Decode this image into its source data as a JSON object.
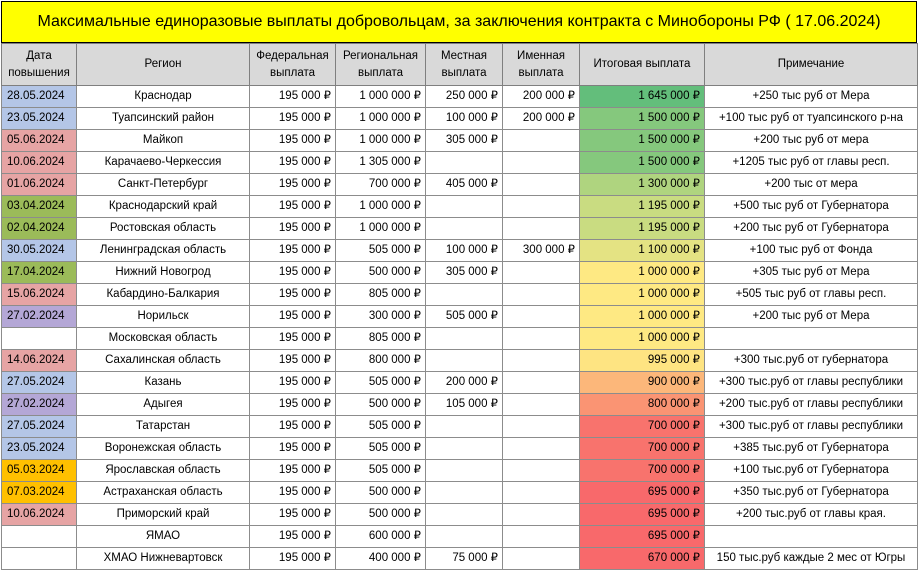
{
  "title": "Максимальные единоразовые выплаты добровольцам, за заключения контракта с Минобороны РФ ( 17.06.2024)",
  "columns": [
    "Дата повышения",
    "Регион",
    "Федеральная выплата",
    "Региональная выплата",
    "Местная выплата",
    "Именная выплата",
    "Итоговая выплата",
    "Примечание"
  ],
  "colors": {
    "date_blue": "#b4c6e7",
    "date_pink": "#e6a4a4",
    "date_green": "#9bbb59",
    "date_purple": "#b4a7d6",
    "date_orange": "#ffc000",
    "header_gray": "#d9d9d9",
    "title_yellow": "#ffff00"
  },
  "rows": [
    {
      "date": "28.05.2024",
      "date_color": "#b4c6e7",
      "region": "Краснодар",
      "federal": "195 000 ₽",
      "regional": "1 000 000 ₽",
      "local": "250 000 ₽",
      "named": "200 000 ₽",
      "total": "1 645 000 ₽",
      "total_color": "#63be7b",
      "note": "+250 тыс руб от Мера"
    },
    {
      "date": "23.05.2024",
      "date_color": "#b4c6e7",
      "region": "Туапсинский район",
      "federal": "195 000 ₽",
      "regional": "1 000 000 ₽",
      "local": "100 000 ₽",
      "named": "200 000 ₽",
      "total": "1 500 000 ₽",
      "total_color": "#85c87d",
      "note": "+100 тыс руб от туапсинского р-на"
    },
    {
      "date": "05.06.2024",
      "date_color": "#e6a4a4",
      "region": "Майкоп",
      "federal": "195 000 ₽",
      "regional": "1 000 000 ₽",
      "local": "305 000 ₽",
      "named": "",
      "total": "1 500 000 ₽",
      "total_color": "#85c87d",
      "note": "+200 тыс руб от мера"
    },
    {
      "date": "10.06.2024",
      "date_color": "#e6a4a4",
      "region": "Карачаево-Черкессия",
      "federal": "195 000 ₽",
      "regional": "1 305 000 ₽",
      "local": "",
      "named": "",
      "total": "1 500 000 ₽",
      "total_color": "#85c87d",
      "note": "+1205 тыс руб от главы респ."
    },
    {
      "date": "01.06.2024",
      "date_color": "#e6a4a4",
      "region": "Санкт-Петербург",
      "federal": "195 000 ₽",
      "regional": "700 000 ₽",
      "local": "405 000 ₽",
      "named": "",
      "total": "1 300 000 ₽",
      "total_color": "#afd47f",
      "note": "+200 тыс от мера"
    },
    {
      "date": "03.04.2024",
      "date_color": "#9bbb59",
      "region": "Краснодарский край",
      "federal": "195 000 ₽",
      "regional": "1 000 000 ₽",
      "local": "",
      "named": "",
      "total": "1 195 000 ₽",
      "total_color": "#c9dc81",
      "note": "+500 тыс руб от Губернатора"
    },
    {
      "date": "02.04.2024",
      "date_color": "#9bbb59",
      "region": "Ростовская область",
      "federal": "195 000 ₽",
      "regional": "1 000 000 ₽",
      "local": "",
      "named": "",
      "total": "1 195 000 ₽",
      "total_color": "#c9dc81",
      "note": "+200 тыс руб от Губернатора"
    },
    {
      "date": "30.05.2024",
      "date_color": "#b4c6e7",
      "region": "Ленинградская область",
      "federal": "195 000 ₽",
      "regional": "505 000 ₽",
      "local": "100 000 ₽",
      "named": "300 000 ₽",
      "total": "1 100 000 ₽",
      "total_color": "#e4e383",
      "note": "+100 тыс руб от Фонда"
    },
    {
      "date": "17.04.2024",
      "date_color": "#9bbb59",
      "region": "Нижний Новогрод",
      "federal": "195 000 ₽",
      "regional": "500 000 ₽",
      "local": "305 000 ₽",
      "named": "",
      "total": "1 000 000 ₽",
      "total_color": "#fee983",
      "note": "+305 тыс руб от Мера"
    },
    {
      "date": "15.06.2024",
      "date_color": "#e6a4a4",
      "region": "Кабардино-Балкария",
      "federal": "195 000 ₽",
      "regional": "805 000 ₽",
      "local": "",
      "named": "",
      "total": "1 000 000 ₽",
      "total_color": "#fee983",
      "note": "+505 тыс руб от главы респ."
    },
    {
      "date": "27.02.2024",
      "date_color": "#b4a7d6",
      "region": "Норильск",
      "federal": "195 000 ₽",
      "regional": "300 000 ₽",
      "local": "505 000 ₽",
      "named": "",
      "total": "1 000 000 ₽",
      "total_color": "#fee983",
      "note": "+200 тыс руб от Мера"
    },
    {
      "date": "",
      "date_color": "#ffffff",
      "region": "Московская область",
      "federal": "195 000 ₽",
      "regional": "805 000 ₽",
      "local": "",
      "named": "",
      "total": "1 000 000 ₽",
      "total_color": "#fee983",
      "note": ""
    },
    {
      "date": "14.06.2024",
      "date_color": "#e6a4a4",
      "region": "Сахалинская область",
      "federal": "195 000 ₽",
      "regional": "800 000 ₽",
      "local": "",
      "named": "",
      "total": "995 000 ₽",
      "total_color": "#fee482",
      "note": "+300 тыс.руб от губернатора"
    },
    {
      "date": "27.05.2024",
      "date_color": "#b4c6e7",
      "region": "Казань",
      "federal": "195 000 ₽",
      "regional": "505 000 ₽",
      "local": "200 000 ₽",
      "named": "",
      "total": "900 000 ₽",
      "total_color": "#fcb77a",
      "note": "+300 тыс.руб от главы республики"
    },
    {
      "date": "27.02.2024",
      "date_color": "#b4a7d6",
      "region": "Адыгея",
      "federal": "195 000 ₽",
      "regional": "500 000 ₽",
      "local": "105 000 ₽",
      "named": "",
      "total": "800 000 ₽",
      "total_color": "#fa9473",
      "note": "+200 тыс.руб от главы республики"
    },
    {
      "date": "27.05.2024",
      "date_color": "#b4c6e7",
      "region": "Татарстан",
      "federal": "195 000 ₽",
      "regional": "505 000 ₽",
      "local": "",
      "named": "",
      "total": "700 000 ₽",
      "total_color": "#f8736d",
      "note": "+300 тыс.руб от главы республики"
    },
    {
      "date": "23.05.2024",
      "date_color": "#b4c6e7",
      "region": "Воронежская область",
      "federal": "195 000 ₽",
      "regional": "505 000 ₽",
      "local": "",
      "named": "",
      "total": "700 000 ₽",
      "total_color": "#f8736d",
      "note": "+385 тыс.руб от Губернатора"
    },
    {
      "date": "05.03.2024",
      "date_color": "#ffc000",
      "region": "Ярославская область",
      "federal": "195 000 ₽",
      "regional": "505 000 ₽",
      "local": "",
      "named": "",
      "total": "700 000 ₽",
      "total_color": "#f8736d",
      "note": "+100 тыс.руб от Губернатора"
    },
    {
      "date": "07.03.2024",
      "date_color": "#ffc000",
      "region": "Астраханская область",
      "federal": "195 000 ₽",
      "regional": "500 000 ₽",
      "local": "",
      "named": "",
      "total": "695 000 ₽",
      "total_color": "#f8696b",
      "note": "+350 тыс.руб от Губернатора"
    },
    {
      "date": "10.06.2024",
      "date_color": "#e6a4a4",
      "region": "Приморский край",
      "federal": "195 000 ₽",
      "regional": "500 000 ₽",
      "local": "",
      "named": "",
      "total": "695 000 ₽",
      "total_color": "#f8696b",
      "note": "+200 тыс.руб от главы края."
    },
    {
      "date": "",
      "date_color": "#ffffff",
      "region": "ЯМАО",
      "federal": "195 000 ₽",
      "regional": "600 000 ₽",
      "local": "",
      "named": "",
      "total": "695 000 ₽",
      "total_color": "#f8696b",
      "note": ""
    },
    {
      "date": "",
      "date_color": "#ffffff",
      "region": "ХМАО Нижневартовск",
      "federal": "195 000 ₽",
      "regional": "400 000 ₽",
      "local": "75 000 ₽",
      "named": "",
      "total": "670 000 ₽",
      "total_color": "#f8696b",
      "note": "150 тыс.руб каждые 2 мес от Югры"
    }
  ]
}
